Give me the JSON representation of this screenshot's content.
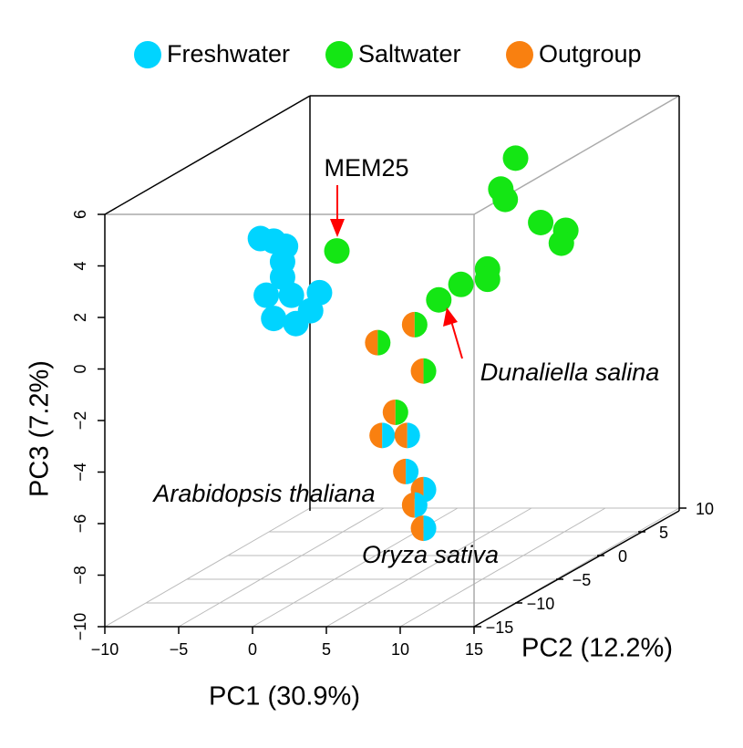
{
  "chart_data": {
    "type": "scatter3d",
    "xlabel": "PC1 (30.9%)",
    "ylabel": "PC2 (12.2%)",
    "zlabel": "PC3 (7.2%)",
    "xlim": [
      -10,
      15
    ],
    "ylim": [
      -15,
      10
    ],
    "zlim": [
      -10,
      6
    ],
    "xticks": [
      {
        "value": -10,
        "label": "−10"
      },
      {
        "value": -5,
        "label": "−5"
      },
      0,
      5,
      10,
      15
    ],
    "yticks": [
      {
        "value": -15,
        "label": "−15"
      },
      {
        "value": -10,
        "label": "−10"
      },
      {
        "value": -5,
        "label": "−5"
      },
      0,
      5,
      10
    ],
    "zticks": [
      {
        "value": -10,
        "label": "−10"
      },
      {
        "value": -8,
        "label": "−8"
      },
      {
        "value": -6,
        "label": "−6"
      },
      {
        "value": -4,
        "label": "−4"
      },
      {
        "value": -2,
        "label": "−2"
      },
      0,
      2,
      4,
      6
    ],
    "grid": true,
    "series": [
      {
        "name": "Freshwater",
        "color": "#00d4ff"
      },
      {
        "name": "Saltwater",
        "color": "#14e614"
      },
      {
        "name": "Outgroup",
        "color": "#f98010"
      }
    ],
    "points": [
      {
        "x": -7.8,
        "y": 0,
        "z": 2.3,
        "groups": [
          0
        ]
      },
      {
        "x": -6.9,
        "y": 0,
        "z": 2.2,
        "groups": [
          0
        ]
      },
      {
        "x": -6.1,
        "y": 0,
        "z": 2.0,
        "groups": [
          0
        ]
      },
      {
        "x": -6.3,
        "y": 0,
        "z": 1.4,
        "groups": [
          0
        ]
      },
      {
        "x": -6.3,
        "y": 0,
        "z": 0.8,
        "groups": [
          0
        ]
      },
      {
        "x": -7.4,
        "y": 0,
        "z": 0.1,
        "groups": [
          0
        ]
      },
      {
        "x": -5.7,
        "y": 0,
        "z": 0.1,
        "groups": [
          0
        ]
      },
      {
        "x": -3.8,
        "y": 0,
        "z": 0.2,
        "groups": [
          0
        ]
      },
      {
        "x": -6.9,
        "y": 0,
        "z": -0.8,
        "groups": [
          0
        ]
      },
      {
        "x": -5.4,
        "y": 0,
        "z": -1.0,
        "groups": [
          0
        ]
      },
      {
        "x": -4.4,
        "y": 0,
        "z": -0.5,
        "groups": [
          0
        ]
      },
      {
        "x": -5.4,
        "y": 5,
        "z": 0.9,
        "groups": [
          1
        ]
      },
      {
        "x": 6.7,
        "y": 5,
        "z": 4.5,
        "groups": [
          1
        ]
      },
      {
        "x": 5.7,
        "y": 5,
        "z": 3.3,
        "groups": [
          1
        ]
      },
      {
        "x": 6.0,
        "y": 5,
        "z": 2.9,
        "groups": [
          1
        ]
      },
      {
        "x": 8.4,
        "y": 5,
        "z": 2.0,
        "groups": [
          1
        ]
      },
      {
        "x": 10.1,
        "y": 5,
        "z": 1.7,
        "groups": [
          1
        ]
      },
      {
        "x": 9.8,
        "y": 5,
        "z": 1.2,
        "groups": [
          1
        ]
      },
      {
        "x": 4.8,
        "y": 5,
        "z": 0.2,
        "groups": [
          1
        ]
      },
      {
        "x": 4.8,
        "y": 5,
        "z": -0.2,
        "groups": [
          1
        ]
      },
      {
        "x": 3.0,
        "y": 5,
        "z": -0.4,
        "groups": [
          1
        ]
      },
      {
        "x": 1.5,
        "y": 5,
        "z": -1.0,
        "groups": [
          1
        ]
      },
      {
        "x": 8.2,
        "y": -10,
        "z": 0.8,
        "groups": [
          2,
          1
        ]
      },
      {
        "x": 5.7,
        "y": -10,
        "z": 0.1,
        "groups": [
          2,
          1
        ]
      },
      {
        "x": 8.8,
        "y": -10,
        "z": -1.0,
        "groups": [
          2,
          1
        ]
      },
      {
        "x": 6.9,
        "y": -10,
        "z": -2.6,
        "groups": [
          2,
          1
        ]
      },
      {
        "x": 6.0,
        "y": -10,
        "z": -3.5,
        "groups": [
          2,
          0
        ]
      },
      {
        "x": 7.7,
        "y": -10,
        "z": -3.5,
        "groups": [
          2,
          0
        ]
      },
      {
        "x": 7.6,
        "y": -10,
        "z": -4.9,
        "groups": [
          2,
          0
        ]
      },
      {
        "x": 8.8,
        "y": -10,
        "z": -5.6,
        "groups": [
          2,
          0
        ]
      },
      {
        "x": 8.2,
        "y": -10,
        "z": -6.2,
        "groups": [
          2,
          0
        ]
      },
      {
        "x": 8.8,
        "y": -10,
        "z": -7.1,
        "groups": [
          2,
          0
        ]
      }
    ],
    "annotations": [
      "MEM25",
      "Dunaliella salina",
      "Arabidopsis thaliana",
      "Oryza sativa"
    ]
  }
}
